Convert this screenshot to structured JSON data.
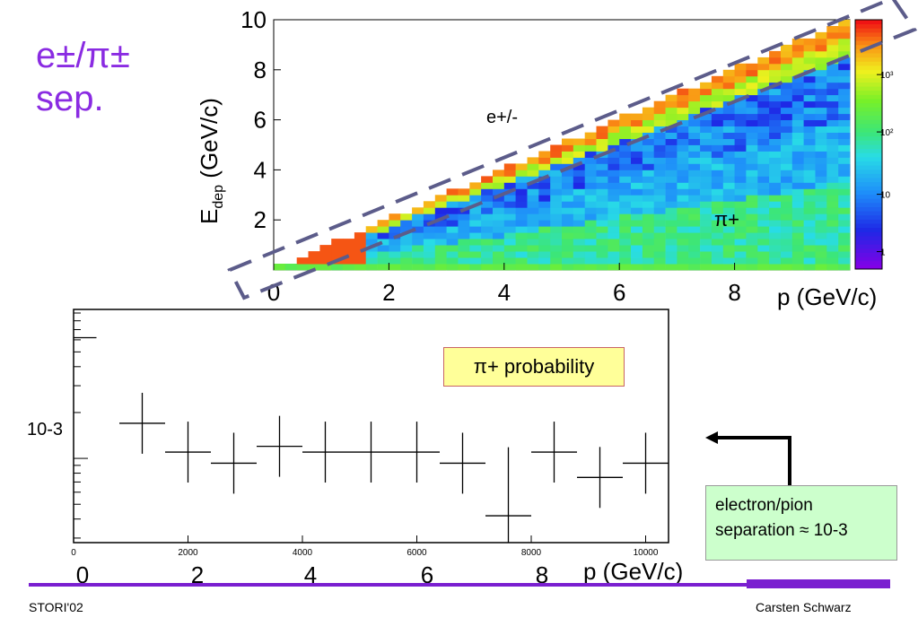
{
  "title": {
    "line1": "e±/π±",
    "line2": "sep."
  },
  "chart_data": [
    {
      "type": "heatmap",
      "ylabel_main": "E",
      "ylabel_sub": "dep",
      "ylabel_unit": "(GeV/c)",
      "xlabel": "p (GeV/c)",
      "xlim": [
        0,
        10
      ],
      "ylim": [
        0,
        10
      ],
      "x_ticks": [
        "0",
        "2",
        "4",
        "6",
        "8"
      ],
      "y_ticks": [
        "2",
        "4",
        "6",
        "8",
        "10"
      ],
      "annotations": {
        "electron_band": "e+/-",
        "pion_band": "π+"
      },
      "colorbar": {
        "scale": "log",
        "ticks": [
          "1",
          "10",
          "10²",
          "10³"
        ]
      }
    },
    {
      "type": "scatter",
      "yscale": "log",
      "x_ticks": [
        "0",
        "2000",
        "4000",
        "6000",
        "8000",
        "10000"
      ],
      "y_tick_label": "10-3",
      "bins": [
        {
          "x": 0,
          "y": 0.0062
        },
        {
          "x": 1200,
          "y": 0.0017
        },
        {
          "x": 2000,
          "y": 0.0011
        },
        {
          "x": 2800,
          "y": 0.00093
        },
        {
          "x": 3600,
          "y": 0.0012
        },
        {
          "x": 4400,
          "y": 0.0011
        },
        {
          "x": 5200,
          "y": 0.0011
        },
        {
          "x": 6000,
          "y": 0.0011
        },
        {
          "x": 6800,
          "y": 0.00093
        },
        {
          "x": 7600,
          "y": 0.00042
        },
        {
          "x": 8400,
          "y": 0.0011
        },
        {
          "x": 9200,
          "y": 0.00075
        },
        {
          "x": 10000,
          "y": 0.00093
        }
      ],
      "legend": "π+ probability",
      "big_x_ticks": [
        "0",
        "2",
        "4",
        "6",
        "8"
      ],
      "big_xlabel": "p (GeV/c)"
    }
  ],
  "callout": {
    "line1": "electron/pion",
    "line2": "separation ≈ 10-3"
  },
  "footer": {
    "left": "STORI'02",
    "right": "Carsten Schwarz"
  },
  "colors": {
    "accent": "#8a2be2",
    "dash": "#5c5c8a",
    "footer_line": "#7a1fd0"
  }
}
